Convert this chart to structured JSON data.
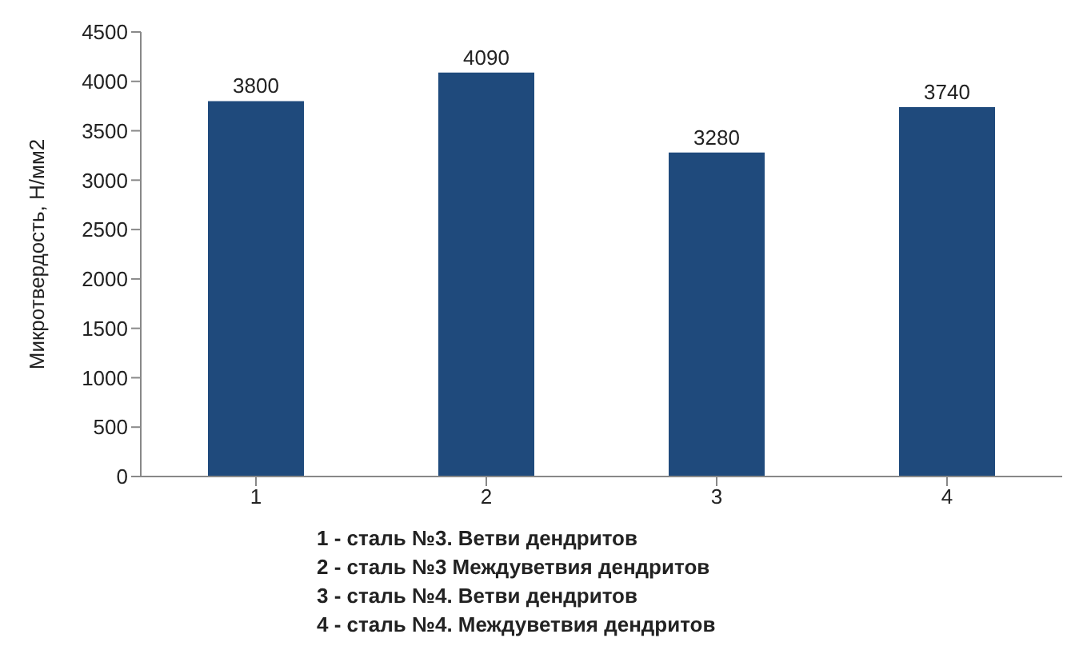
{
  "chart_data": {
    "type": "bar",
    "ylabel": "Микротвердость, Н/мм2",
    "categories": [
      "1",
      "2",
      "3",
      "4"
    ],
    "values": [
      3800,
      4090,
      3280,
      3740
    ],
    "color": "#1f4a7c",
    "ylim": [
      0,
      4500
    ],
    "yticks": [
      0,
      500,
      1000,
      1500,
      2000,
      2500,
      3000,
      3500,
      4000,
      4500
    ],
    "data_labels": true,
    "grid": false,
    "legend": false,
    "annotations": [
      "1 - сталь №3. Ветви дендритов",
      "2 - сталь №3 Междуветвия дендритов",
      "3 - сталь №4. Ветви дендритов",
      "4 - сталь №4. Междуветвия дендритов"
    ]
  }
}
